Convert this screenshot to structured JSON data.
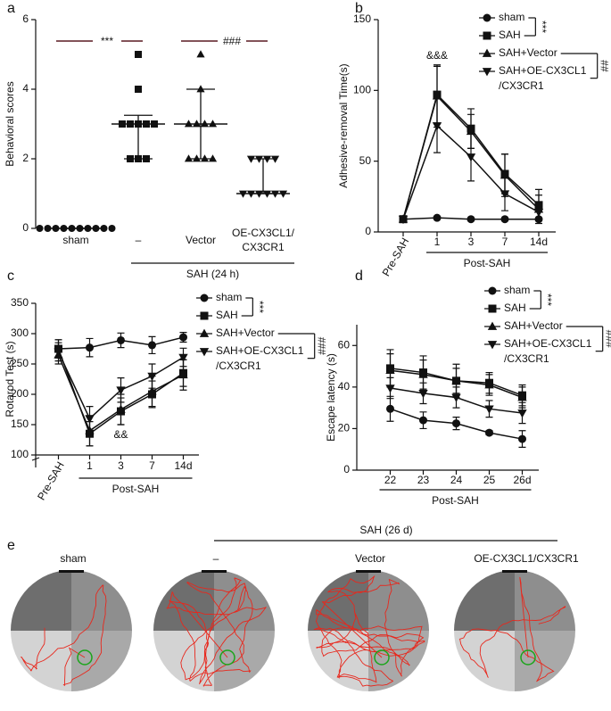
{
  "chart_data": [
    {
      "type": "strip",
      "label": "a",
      "ylabel": "Behavioral scores",
      "categories": [
        "sham",
        "–",
        "Vector",
        "OE-CX3CL1/CX3CR1"
      ],
      "markers": [
        "circle",
        "square",
        "triangle-up",
        "triangle-down"
      ],
      "color": "#111111",
      "points": [
        [
          0,
          0,
          0,
          0,
          0,
          0,
          0,
          0,
          0,
          0
        ],
        [
          5,
          4,
          3,
          3,
          3,
          3,
          3,
          2,
          2,
          2
        ],
        [
          5,
          4,
          3,
          3,
          3,
          3,
          2,
          2,
          2,
          2
        ],
        [
          2,
          2,
          2,
          2,
          1,
          1,
          1,
          1,
          1,
          1
        ]
      ],
      "center": [
        0,
        3,
        3,
        1
      ],
      "low": [
        0,
        2,
        2,
        1
      ],
      "high": [
        0,
        3.25,
        4,
        2
      ],
      "ylim": [
        0,
        6
      ],
      "yticks": [
        0,
        2,
        4,
        6
      ],
      "group": {
        "label": "SAH (24 h)",
        "from": "–"
      },
      "comparisons": [
        {
          "between": [
            "sham",
            "–"
          ],
          "label": "***"
        },
        {
          "between": [
            "Vector",
            "OE-CX3CL1/CX3CR1"
          ],
          "label": "###"
        }
      ],
      "comparison_color": "#5a1a22"
    },
    {
      "type": "line",
      "label": "b",
      "ylabel": "Adhesive-removal Time(s)",
      "categories": [
        "Pre-SAH",
        "1",
        "3",
        "7",
        "14d"
      ],
      "series": [
        {
          "name": "sham",
          "marker": "circle",
          "color": "#111111",
          "values": [
            9,
            10,
            9,
            9,
            9
          ],
          "errors": [
            1,
            1,
            1,
            1,
            1
          ]
        },
        {
          "name": "SAH",
          "marker": "square",
          "color": "#111111",
          "values": [
            9,
            97,
            73,
            41,
            19
          ],
          "errors": [
            1,
            20,
            14,
            14,
            11
          ]
        },
        {
          "name": "SAH+Vector",
          "marker": "triangle-up",
          "color": "#111111",
          "values": [
            9,
            96,
            71,
            40,
            16
          ],
          "errors": [
            1,
            22,
            12,
            15,
            10
          ]
        },
        {
          "name": "SAH+OE-CX3CL1/CX3CR1",
          "marker": "triangle-down",
          "color": "#111111",
          "values": [
            9,
            75,
            53,
            27,
            14
          ],
          "errors": [
            1,
            19,
            17,
            12,
            6
          ]
        }
      ],
      "ylim": [
        0,
        150
      ],
      "yticks": [
        0,
        50,
        100,
        150
      ],
      "group": {
        "label": "Post-SAH",
        "from": "1"
      },
      "annotations": [
        {
          "text": "&&&",
          "category": "1",
          "side": "above"
        }
      ],
      "comparisons": [
        {
          "between": [
            "sham",
            "SAH"
          ],
          "label": "***"
        },
        {
          "between": [
            "SAH+Vector",
            "SAH+OE-CX3CL1/CX3CR1"
          ],
          "label": "##"
        }
      ]
    },
    {
      "type": "line",
      "label": "c",
      "ylabel": "Rotarod Test (s)",
      "categories": [
        "Pre-SAH",
        "1",
        "3",
        "7",
        "14d"
      ],
      "series": [
        {
          "name": "sham",
          "marker": "circle",
          "color": "#111111",
          "values": [
            275,
            277,
            289,
            281,
            294
          ],
          "errors": [
            15,
            15,
            12,
            14,
            8
          ]
        },
        {
          "name": "SAH",
          "marker": "square",
          "color": "#111111",
          "values": [
            275,
            135,
            172,
            200,
            235
          ],
          "errors": [
            15,
            20,
            22,
            22,
            22
          ]
        },
        {
          "name": "SAH+Vector",
          "marker": "triangle-up",
          "color": "#111111",
          "values": [
            265,
            140,
            175,
            205,
            232
          ],
          "errors": [
            15,
            25,
            25,
            25,
            25
          ]
        },
        {
          "name": "SAH+OE-CX3CL1/CX3CR1",
          "marker": "triangle-down",
          "color": "#111111",
          "values": [
            270,
            160,
            207,
            230,
            261
          ],
          "errors": [
            15,
            20,
            20,
            20,
            15
          ]
        }
      ],
      "ylim": [
        100,
        350
      ],
      "yticks": [
        100,
        150,
        200,
        250,
        300,
        350
      ],
      "group": {
        "label": "Post-SAH",
        "from": "1"
      },
      "annotations": [
        {
          "text": "&&",
          "category": "3",
          "side": "below"
        }
      ],
      "comparisons": [
        {
          "between": [
            "sham",
            "SAH"
          ],
          "label": "***"
        },
        {
          "between": [
            "SAH+Vector",
            "SAH+OE-CX3CL1/CX3CR1"
          ],
          "label": "###"
        }
      ]
    },
    {
      "type": "line",
      "label": "d",
      "ylabel": "Escape latency (s)",
      "categories": [
        "22",
        "23",
        "24",
        "25",
        "26d"
      ],
      "series": [
        {
          "name": "sham",
          "marker": "circle",
          "color": "#111111",
          "values": [
            29.5,
            24,
            22.5,
            18,
            15
          ],
          "errors": [
            6,
            4,
            3,
            1,
            4
          ]
        },
        {
          "name": "SAH",
          "marker": "square",
          "color": "#111111",
          "values": [
            49,
            47,
            43,
            42,
            36
          ],
          "errors": [
            9,
            8,
            8,
            5,
            5
          ]
        },
        {
          "name": "SAH+Vector",
          "marker": "triangle-up",
          "color": "#111111",
          "values": [
            48,
            46,
            43,
            41,
            35
          ],
          "errors": [
            8,
            7,
            6,
            5,
            5
          ]
        },
        {
          "name": "SAH+OE-CX3CL1/CX3CR1",
          "marker": "triangle-down",
          "color": "#111111",
          "values": [
            39.5,
            37,
            35,
            29.5,
            27.5
          ],
          "errors": [
            5,
            5,
            5,
            4,
            5
          ]
        }
      ],
      "ylim": [
        0,
        70
      ],
      "yticks": [
        0,
        20,
        40,
        60
      ],
      "group": {
        "label": "Post-SAH",
        "from": "22"
      },
      "comparisons": [
        {
          "between": [
            "sham",
            "SAH"
          ],
          "label": "***"
        },
        {
          "between": [
            "SAH+Vector",
            "SAH+OE-CX3CL1/CX3CR1"
          ],
          "label": "###"
        }
      ]
    }
  ],
  "panel_e": {
    "label": "e",
    "group": "SAH (26 d)",
    "titles": [
      "sham",
      "–",
      "Vector",
      "OE-CX3CL1/CX3CR1"
    ]
  }
}
